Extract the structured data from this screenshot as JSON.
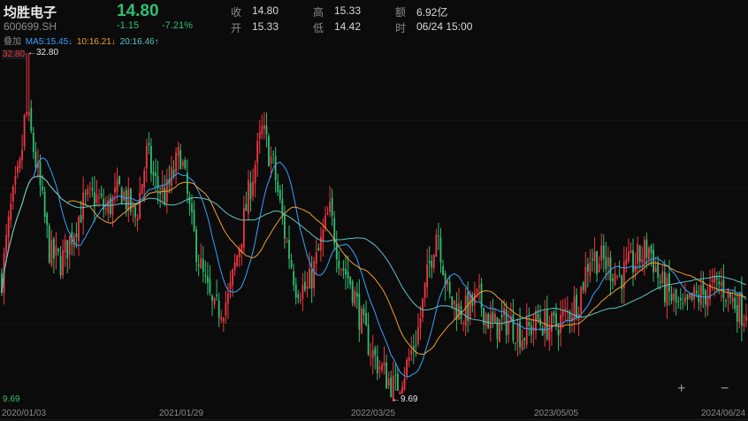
{
  "header": {
    "name": "均胜电子",
    "code": "600699.SH",
    "price": "14.80",
    "change": "-1.15",
    "change_pct": "-7.21%",
    "quote": {
      "close_label": "收",
      "close": "14.80",
      "open_label": "开",
      "open": "15.33",
      "high_label": "高",
      "high": "15.33",
      "low_label": "低",
      "low": "14.42",
      "amount_label": "额",
      "amount": "6.92亿",
      "time_label": "时",
      "time": "06/24 15:00"
    }
  },
  "ma": {
    "overlay_label": "叠加",
    "ma5": "MA5:15.45↓",
    "ma10": "10:16.21↓",
    "ma20": "20:16.46↑"
  },
  "y_axis": {
    "max": "32.80",
    "min": "9.69"
  },
  "annotations": {
    "high": "←32.80",
    "low": "←9.69"
  },
  "zoom": {
    "in": "+",
    "out": "−"
  },
  "colors": {
    "up": "#f23645",
    "down": "#2fbf71",
    "ma5": "#3aa1ff",
    "ma10": "#f0a030",
    "ma20": "#5fc4c8"
  },
  "chart_data": {
    "type": "candlestick",
    "x_range": [
      "2020/01/03",
      "2024/06/24"
    ],
    "x_ticks": [
      "2020/01/03",
      "2021/01/29",
      "2022/03/25",
      "2023/05/05",
      "2024/06/24"
    ],
    "ylim": [
      9.69,
      32.8
    ],
    "high_marker": 32.8,
    "low_marker": 9.69,
    "series": [
      {
        "name": "MA5",
        "values": [
          15.45
        ]
      },
      {
        "name": "MA10",
        "values": [
          16.21
        ]
      },
      {
        "name": "MA20",
        "values": [
          16.46
        ]
      }
    ],
    "price_path": [
      [
        0,
        17.5
      ],
      [
        0.012,
        22
      ],
      [
        0.025,
        25
      ],
      [
        0.032,
        29
      ],
      [
        0.04,
        27
      ],
      [
        0.05,
        24
      ],
      [
        0.065,
        19
      ],
      [
        0.08,
        18.5
      ],
      [
        0.095,
        20.5
      ],
      [
        0.11,
        22.5
      ],
      [
        0.125,
        23
      ],
      [
        0.14,
        22
      ],
      [
        0.16,
        23.5
      ],
      [
        0.18,
        21.5
      ],
      [
        0.195,
        26
      ],
      [
        0.205,
        24
      ],
      [
        0.22,
        23
      ],
      [
        0.24,
        26
      ],
      [
        0.255,
        21
      ],
      [
        0.27,
        17.5
      ],
      [
        0.285,
        15
      ],
      [
        0.305,
        16
      ],
      [
        0.32,
        20
      ],
      [
        0.335,
        24
      ],
      [
        0.35,
        27.5
      ],
      [
        0.365,
        25
      ],
      [
        0.38,
        20.5
      ],
      [
        0.395,
        17
      ],
      [
        0.41,
        16.5
      ],
      [
        0.425,
        19
      ],
      [
        0.44,
        22
      ],
      [
        0.455,
        18.5
      ],
      [
        0.47,
        17
      ],
      [
        0.485,
        14
      ],
      [
        0.5,
        12
      ],
      [
        0.515,
        10.8
      ],
      [
        0.528,
        9.8
      ],
      [
        0.545,
        11.5
      ],
      [
        0.56,
        14
      ],
      [
        0.575,
        18.5
      ],
      [
        0.585,
        21
      ],
      [
        0.6,
        16
      ],
      [
        0.62,
        15
      ],
      [
        0.64,
        16
      ],
      [
        0.66,
        14
      ],
      [
        0.68,
        14.5
      ],
      [
        0.7,
        13.5
      ],
      [
        0.72,
        14.5
      ],
      [
        0.74,
        14
      ],
      [
        0.76,
        15
      ],
      [
        0.775,
        16
      ],
      [
        0.79,
        19
      ],
      [
        0.81,
        18.5
      ],
      [
        0.83,
        17.5
      ],
      [
        0.85,
        18.5
      ],
      [
        0.87,
        19.5
      ],
      [
        0.885,
        17
      ],
      [
        0.9,
        16
      ],
      [
        0.915,
        15
      ],
      [
        0.93,
        16
      ],
      [
        0.95,
        16.5
      ],
      [
        0.965,
        17
      ],
      [
        0.98,
        16
      ],
      [
        1,
        14.8
      ]
    ]
  }
}
